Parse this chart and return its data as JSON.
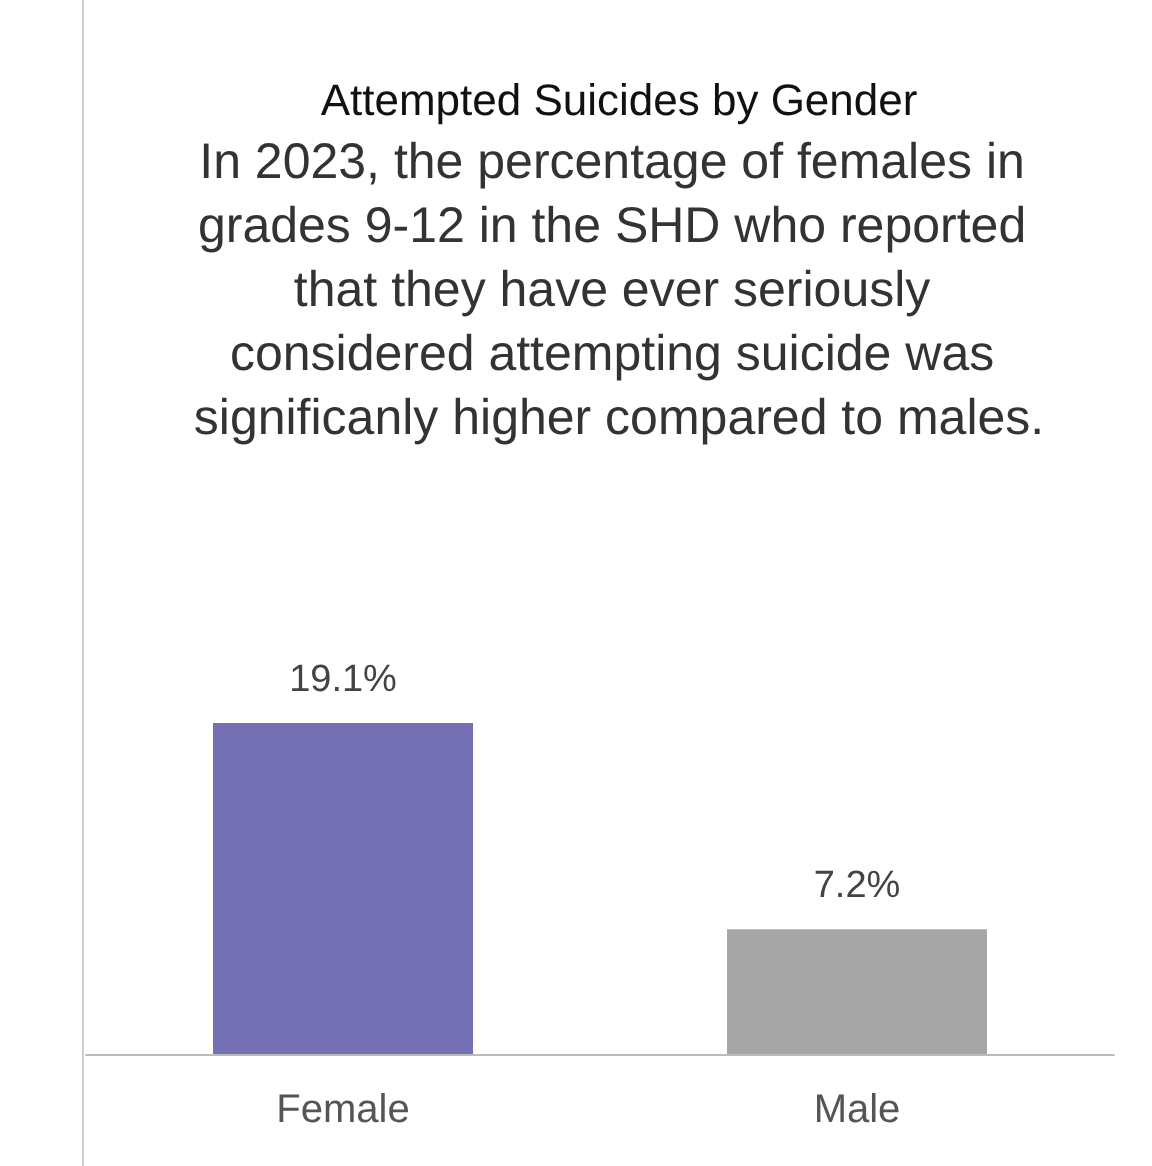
{
  "chart_data": {
    "type": "bar",
    "title": "Attempted Suicides by Gender",
    "subtitle": "In 2023, the percentage of females in grades 9-12 in the SHD who reported that they have ever seriously considered attempting suicide was significanly higher compared to males.",
    "categories": [
      "Female",
      "Male"
    ],
    "values": [
      19.1,
      7.2
    ],
    "colors": [
      "#756fb3",
      "#a6a6a6"
    ],
    "value_labels": [
      "19.1%",
      "7.2%"
    ]
  }
}
